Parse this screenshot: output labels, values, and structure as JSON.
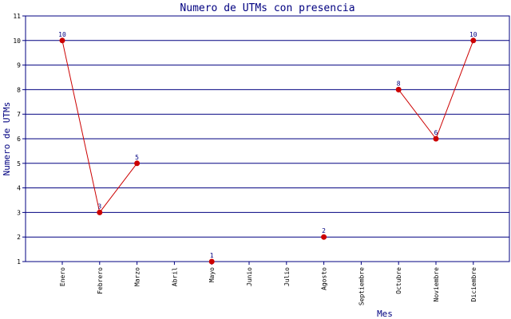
{
  "chart_data": {
    "type": "line",
    "title": "Numero de UTMs con presencia",
    "xlabel": "Mes",
    "ylabel": "Numero de UTMs",
    "categories": [
      "Enero",
      "Febrero",
      "Marzo",
      "Abril",
      "Mayo",
      "Junio",
      "Julio",
      "Agosto",
      "Septiembre",
      "Octubre",
      "Noviembre",
      "Diciembre"
    ],
    "values": [
      10,
      3,
      5,
      null,
      1,
      null,
      null,
      2,
      null,
      8,
      6,
      10
    ],
    "ylim": [
      1,
      11
    ],
    "yticks": [
      1,
      2,
      3,
      4,
      5,
      6,
      7,
      8,
      9,
      10,
      11
    ],
    "grid": true,
    "colors": {
      "line": "#cc0000",
      "marker": "#cc0000",
      "grid": "#000080",
      "text": "#000080"
    }
  }
}
